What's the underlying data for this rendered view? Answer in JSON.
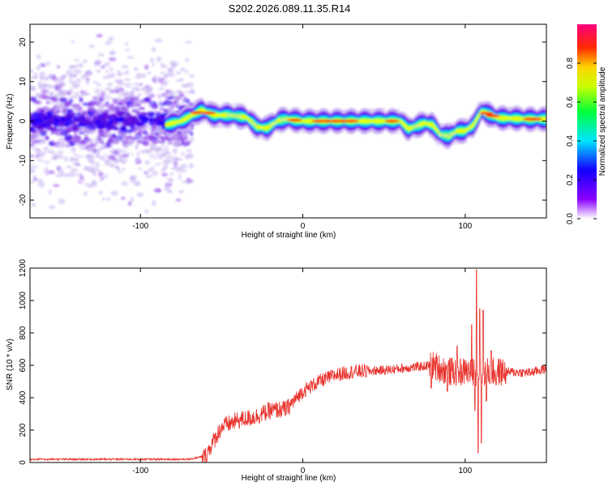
{
  "title": "S202.2026.089.11.35.R14",
  "chart_data": [
    {
      "type": "heatmap",
      "xlabel": "Height of straight line (km)",
      "ylabel": "Frequency (Hz)",
      "xlim": [
        -168,
        150
      ],
      "ylim": [
        -24.5,
        24.5
      ],
      "xticks": [
        -100,
        0,
        100
      ],
      "yticks": [
        -20,
        -10,
        0,
        10,
        20
      ],
      "ridge_x": [
        -85,
        -75,
        -68,
        -62,
        -55,
        -45,
        -35,
        -28,
        -22,
        -15,
        -10,
        0,
        20,
        40,
        50,
        60,
        65,
        75,
        80,
        85,
        90,
        95,
        100,
        105,
        110,
        120,
        140,
        150
      ],
      "ridge_freq": [
        -1,
        0,
        1.5,
        2.8,
        1.5,
        1.5,
        1.0,
        -1.5,
        -1.8,
        0.2,
        0.5,
        0.0,
        0.0,
        0.0,
        0.0,
        0.0,
        -2.0,
        -0.5,
        -1.0,
        -3.5,
        -3.8,
        -2.5,
        -2.5,
        -1.0,
        2.5,
        0.8,
        0.5,
        0.5
      ],
      "colorbar": {
        "label": "Normalized spectral amplitude",
        "ticks": [
          "0.0",
          "0.2",
          "0.4",
          "0.6",
          "0.8"
        ],
        "range": [
          0,
          1
        ]
      }
    },
    {
      "type": "line",
      "xlabel": "Height of straight line (km)",
      "ylabel": "SNR (10 * v/v)",
      "xlim": [
        -168,
        150
      ],
      "ylim": [
        0,
        1200
      ],
      "xticks": [
        -100,
        0,
        100
      ],
      "yticks": [
        0,
        200,
        400,
        600,
        800,
        1000,
        1200
      ],
      "color": "#e8322c",
      "trend": [
        [
          -168,
          20
        ],
        [
          -100,
          20
        ],
        [
          -70,
          20
        ],
        [
          -60,
          40
        ],
        [
          -50,
          220
        ],
        [
          -40,
          260
        ],
        [
          -30,
          280
        ],
        [
          -20,
          320
        ],
        [
          -10,
          330
        ],
        [
          0,
          440
        ],
        [
          10,
          500
        ],
        [
          20,
          540
        ],
        [
          30,
          560
        ],
        [
          50,
          570
        ],
        [
          70,
          590
        ],
        [
          80,
          600
        ],
        [
          90,
          560
        ],
        [
          100,
          560
        ],
        [
          110,
          560
        ],
        [
          120,
          560
        ],
        [
          140,
          555
        ],
        [
          150,
          580
        ]
      ],
      "spikes": [
        [
          79,
          460
        ],
        [
          89,
          440
        ],
        [
          95,
          720
        ],
        [
          100,
          540
        ],
        [
          104,
          850
        ],
        [
          106,
          320
        ],
        [
          107,
          1190
        ],
        [
          108,
          60
        ],
        [
          109,
          950
        ],
        [
          110,
          120
        ],
        [
          111,
          940
        ],
        [
          113,
          380
        ],
        [
          116,
          690
        ],
        [
          119,
          480
        ]
      ]
    }
  ]
}
